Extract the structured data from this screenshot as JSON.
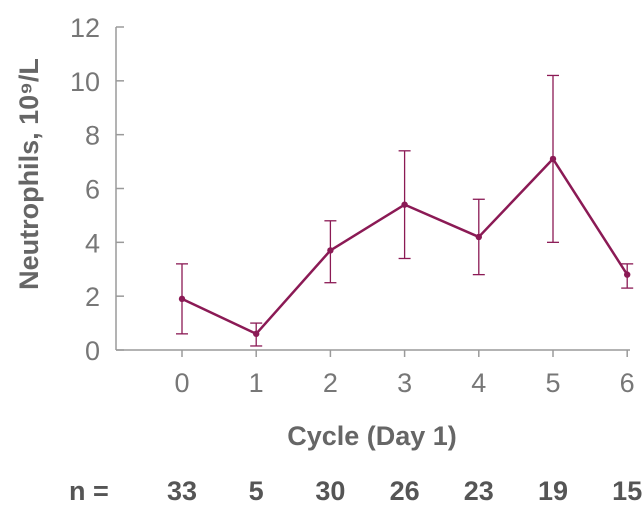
{
  "chart_data": {
    "type": "line",
    "xlabel": "Cycle (Day 1)",
    "ylabel": "Neutrophils, 10⁹/L",
    "ylim": [
      0,
      12
    ],
    "xlim": [
      0,
      6
    ],
    "y_ticks": [
      "0",
      "2",
      "4",
      "6",
      "8",
      "10",
      "12"
    ],
    "x_ticks": [
      "0",
      "1",
      "2",
      "3",
      "4",
      "5",
      "6"
    ],
    "grid": false,
    "series": [
      {
        "x": [
          0,
          1,
          2,
          3,
          4,
          5,
          6
        ],
        "values": [
          1.9,
          0.6,
          3.7,
          5.4,
          4.2,
          7.1,
          2.8
        ],
        "error_low": [
          0.6,
          0.15,
          2.5,
          3.4,
          2.8,
          4.0,
          2.3
        ],
        "error_high": [
          3.2,
          1.0,
          4.8,
          7.4,
          5.6,
          10.2,
          3.2
        ]
      }
    ],
    "n_label": "n =",
    "n_values": [
      "33",
      "5",
      "30",
      "26",
      "23",
      "19",
      "15"
    ]
  },
  "colors": {
    "series": "#8b1a55",
    "axis": "#9a9a9a"
  }
}
